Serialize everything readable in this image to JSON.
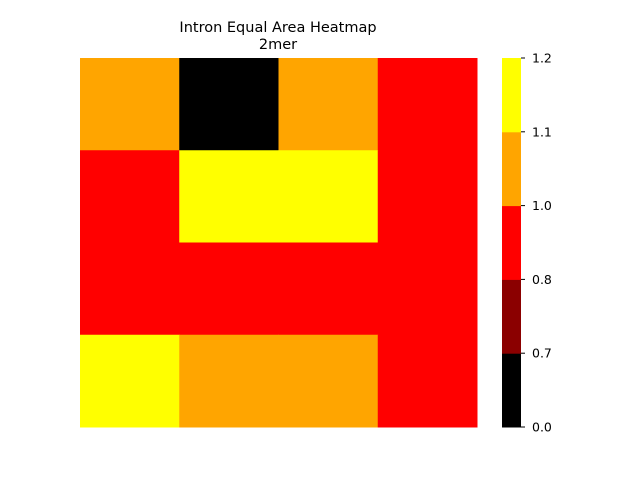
{
  "chart_data": {
    "type": "heatmap",
    "title": "Intron Equal Area Heatmap",
    "subtitle": "2mer",
    "xlabel": "",
    "ylabel": "",
    "grid": false,
    "rows": 4,
    "cols": 4,
    "values": [
      [
        1.05,
        0.35,
        1.05,
        0.9
      ],
      [
        0.9,
        1.15,
        1.15,
        0.9
      ],
      [
        0.9,
        0.9,
        0.9,
        0.9
      ],
      [
        1.15,
        1.05,
        1.05,
        0.9
      ]
    ],
    "colorbar": {
      "bounds": [
        0.0,
        0.7,
        0.8,
        1.0,
        1.1,
        1.2
      ],
      "colors": [
        "#000000",
        "#8b0000",
        "#ff0000",
        "#ffa500",
        "#ffff00"
      ],
      "tick_labels": [
        "0.0",
        "0.7",
        "0.8",
        "1.0",
        "1.1",
        "1.2"
      ],
      "position": "right"
    }
  }
}
